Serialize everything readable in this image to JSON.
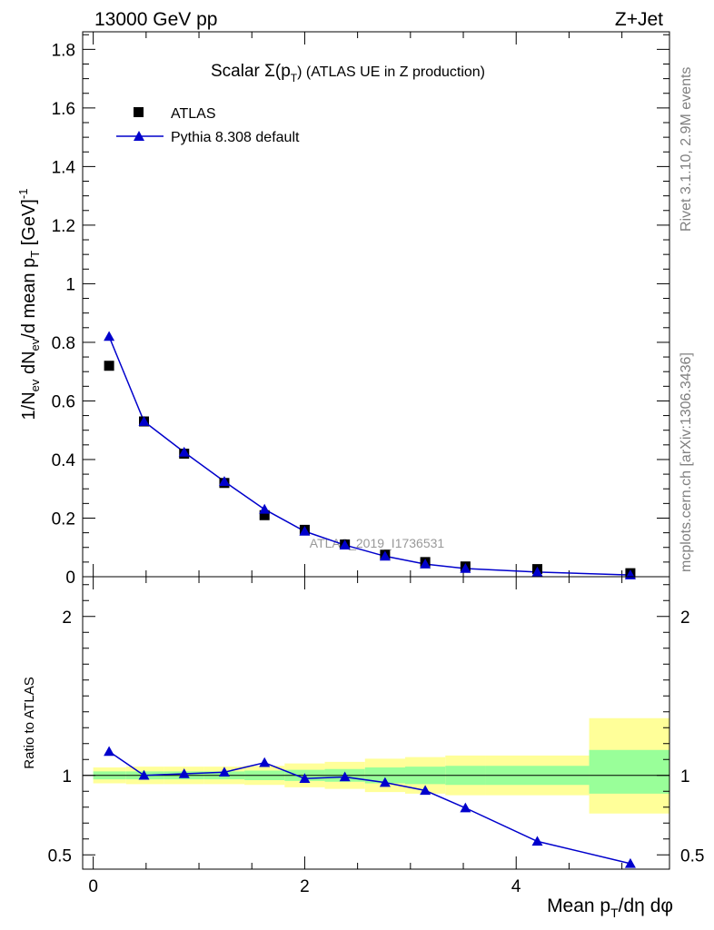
{
  "header": {
    "energy_label": "13000 GeV pp",
    "process_label": "Z+Jet"
  },
  "side_labels": {
    "rivet": "Rivet 3.1.10,  2.9M events",
    "mcplots": "mcplots.cern.ch [arXiv:1306.3436]"
  },
  "chart_data": [
    {
      "type": "scatter",
      "title_main": "Scalar Σ(p",
      "title_sub": "T",
      "title_rest": ") (ATLAS UE in Z production)",
      "ylabel": "1/N_ev dN_ev/d mean p_T [GeV]^-1",
      "watermark": "ATLAS_2019_I1736531",
      "ylim": [
        0,
        1.86
      ],
      "xlim": [
        -0.1,
        5.45
      ],
      "yticks": [
        0,
        0.2,
        0.4,
        0.6,
        0.8,
        1,
        1.2,
        1.4,
        1.6,
        1.8
      ],
      "yticklabels": [
        "0",
        "0.2",
        "0.4",
        "0.6",
        "0.8",
        "1",
        "1.2",
        "1.4",
        "1.6",
        "1.8"
      ],
      "legend_position": "top-left",
      "series": [
        {
          "name": "ATLAS",
          "marker": "square",
          "color": "#000000",
          "x": [
            0.15,
            0.48,
            0.86,
            1.24,
            1.62,
            2.0,
            2.38,
            2.76,
            3.14,
            3.52,
            4.2,
            5.08
          ],
          "y": [
            0.72,
            0.53,
            0.42,
            0.32,
            0.21,
            0.16,
            0.11,
            0.075,
            0.05,
            0.035,
            0.026,
            0.012
          ]
        },
        {
          "name": "Pythia 8.308 default",
          "marker": "triangle",
          "color": "#0000cc",
          "x": [
            0.15,
            0.48,
            0.86,
            1.24,
            1.62,
            2.0,
            2.38,
            2.76,
            3.14,
            3.52,
            4.2,
            5.08
          ],
          "y": [
            0.82,
            0.53,
            0.425,
            0.325,
            0.23,
            0.155,
            0.108,
            0.07,
            0.043,
            0.028,
            0.016,
            0.006
          ]
        }
      ]
    },
    {
      "type": "line",
      "ylabel": "Ratio to ATLAS",
      "xlabel": "Mean p_T/dη dφ",
      "ylim": [
        0.41,
        2.25
      ],
      "xlim": [
        -0.1,
        5.45
      ],
      "yticks": [
        0.5,
        1,
        2
      ],
      "yticklabels": [
        "0.5",
        "1",
        "2"
      ],
      "xticks": [
        0,
        2,
        4
      ],
      "xticklabels": [
        "0",
        "2",
        "4"
      ],
      "reference_line": 1,
      "bands": {
        "colors": {
          "outer": "#ffff99",
          "inner": "#99ff99"
        },
        "bins": [
          {
            "lo": 0.0,
            "hi": 0.31,
            "outer": [
              0.95,
              1.05
            ],
            "inner": [
              0.975,
              1.025
            ]
          },
          {
            "lo": 0.31,
            "hi": 0.67,
            "outer": [
              0.945,
              1.055
            ],
            "inner": [
              0.975,
              1.025
            ]
          },
          {
            "lo": 0.67,
            "hi": 1.05,
            "outer": [
              0.945,
              1.055
            ],
            "inner": [
              0.975,
              1.025
            ]
          },
          {
            "lo": 1.05,
            "hi": 1.43,
            "outer": [
              0.945,
              1.055
            ],
            "inner": [
              0.975,
              1.025
            ]
          },
          {
            "lo": 1.43,
            "hi": 1.81,
            "outer": [
              0.94,
              1.06
            ],
            "inner": [
              0.97,
              1.03
            ]
          },
          {
            "lo": 1.81,
            "hi": 2.19,
            "outer": [
              0.925,
              1.075
            ],
            "inner": [
              0.965,
              1.035
            ]
          },
          {
            "lo": 2.19,
            "hi": 2.57,
            "outer": [
              0.915,
              1.085
            ],
            "inner": [
              0.96,
              1.04
            ]
          },
          {
            "lo": 2.57,
            "hi": 2.95,
            "outer": [
              0.895,
              1.105
            ],
            "inner": [
              0.95,
              1.05
            ]
          },
          {
            "lo": 2.95,
            "hi": 3.33,
            "outer": [
              0.885,
              1.115
            ],
            "inner": [
              0.945,
              1.055
            ]
          },
          {
            "lo": 3.33,
            "hi": 3.71,
            "outer": [
              0.875,
              1.125
            ],
            "inner": [
              0.94,
              1.06
            ]
          },
          {
            "lo": 3.71,
            "hi": 4.69,
            "outer": [
              0.875,
              1.125
            ],
            "inner": [
              0.94,
              1.06
            ]
          },
          {
            "lo": 4.69,
            "hi": 5.45,
            "outer": [
              0.76,
              1.36
            ],
            "inner": [
              0.885,
              1.16
            ]
          }
        ]
      },
      "series": [
        {
          "name": "Pythia 8.308 default",
          "color": "#0000cc",
          "x": [
            0.15,
            0.48,
            0.86,
            1.24,
            1.62,
            2.0,
            2.38,
            2.76,
            3.14,
            3.52,
            4.2,
            5.08
          ],
          "y": [
            1.15,
            1.0,
            1.01,
            1.02,
            1.08,
            0.98,
            0.99,
            0.955,
            0.905,
            0.795,
            0.585,
            0.445
          ],
          "yerr": [
            0.008,
            0.006,
            0.006,
            0.006,
            0.008,
            0.008,
            0.008,
            0.01,
            0.012,
            0.018,
            0.015,
            0.025
          ]
        }
      ]
    }
  ]
}
